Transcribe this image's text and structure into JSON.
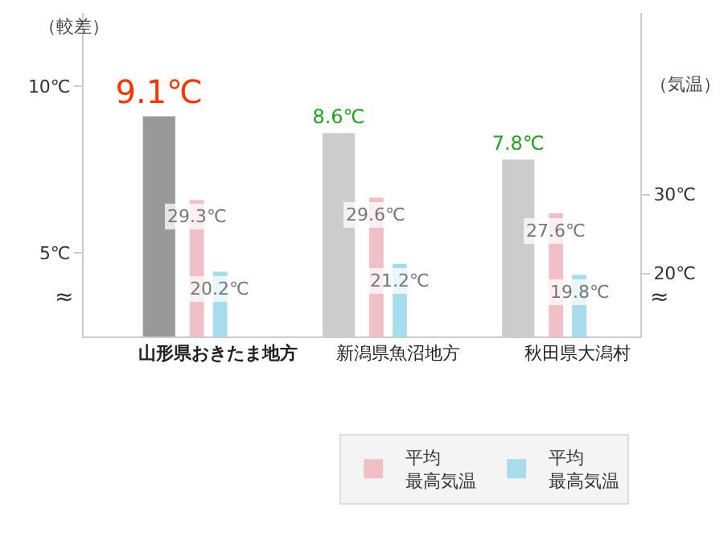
{
  "chart_data": {
    "type": "bar",
    "categories": [
      "山形県おきたま地方",
      "新潟県魚沼地方",
      "秋田県大潟村"
    ],
    "ylabel": "（較差）",
    "y2label": "（気温）",
    "ylim": [
      2.5,
      12.2
    ],
    "yticks": [
      {
        "value": 5,
        "label": "5℃"
      },
      {
        "value": 10,
        "label": "10℃"
      }
    ],
    "y2lim": [
      12,
      53
    ],
    "y2ticks": [
      {
        "value": 20,
        "label": "20℃"
      },
      {
        "value": 30,
        "label": "30℃"
      }
    ],
    "series": [
      {
        "colors": [
          "#999999",
          "#cccccc",
          "#cccccc"
        ],
        "values": [
          9.1,
          8.6,
          7.8
        ],
        "value_labels": [
          "9.1℃",
          "8.6℃",
          "7.8℃"
        ]
      },
      {
        "name": "平均最高気温",
        "color": "#f0c0c6",
        "axis": "y2",
        "values": [
          29.3,
          29.6,
          27.6
        ],
        "value_labels": [
          "29.3℃",
          "29.6℃",
          "27.6℃"
        ]
      },
      {
        "name": "平均最高気温",
        "color": "#a6dcec",
        "axis": "y2",
        "values": [
          20.2,
          21.2,
          19.8
        ],
        "value_labels": [
          "20.2℃",
          "21.2℃",
          "19.8℃"
        ]
      }
    ],
    "annotations": [
      "≈",
      "≈"
    ],
    "legend": "bottom right"
  }
}
